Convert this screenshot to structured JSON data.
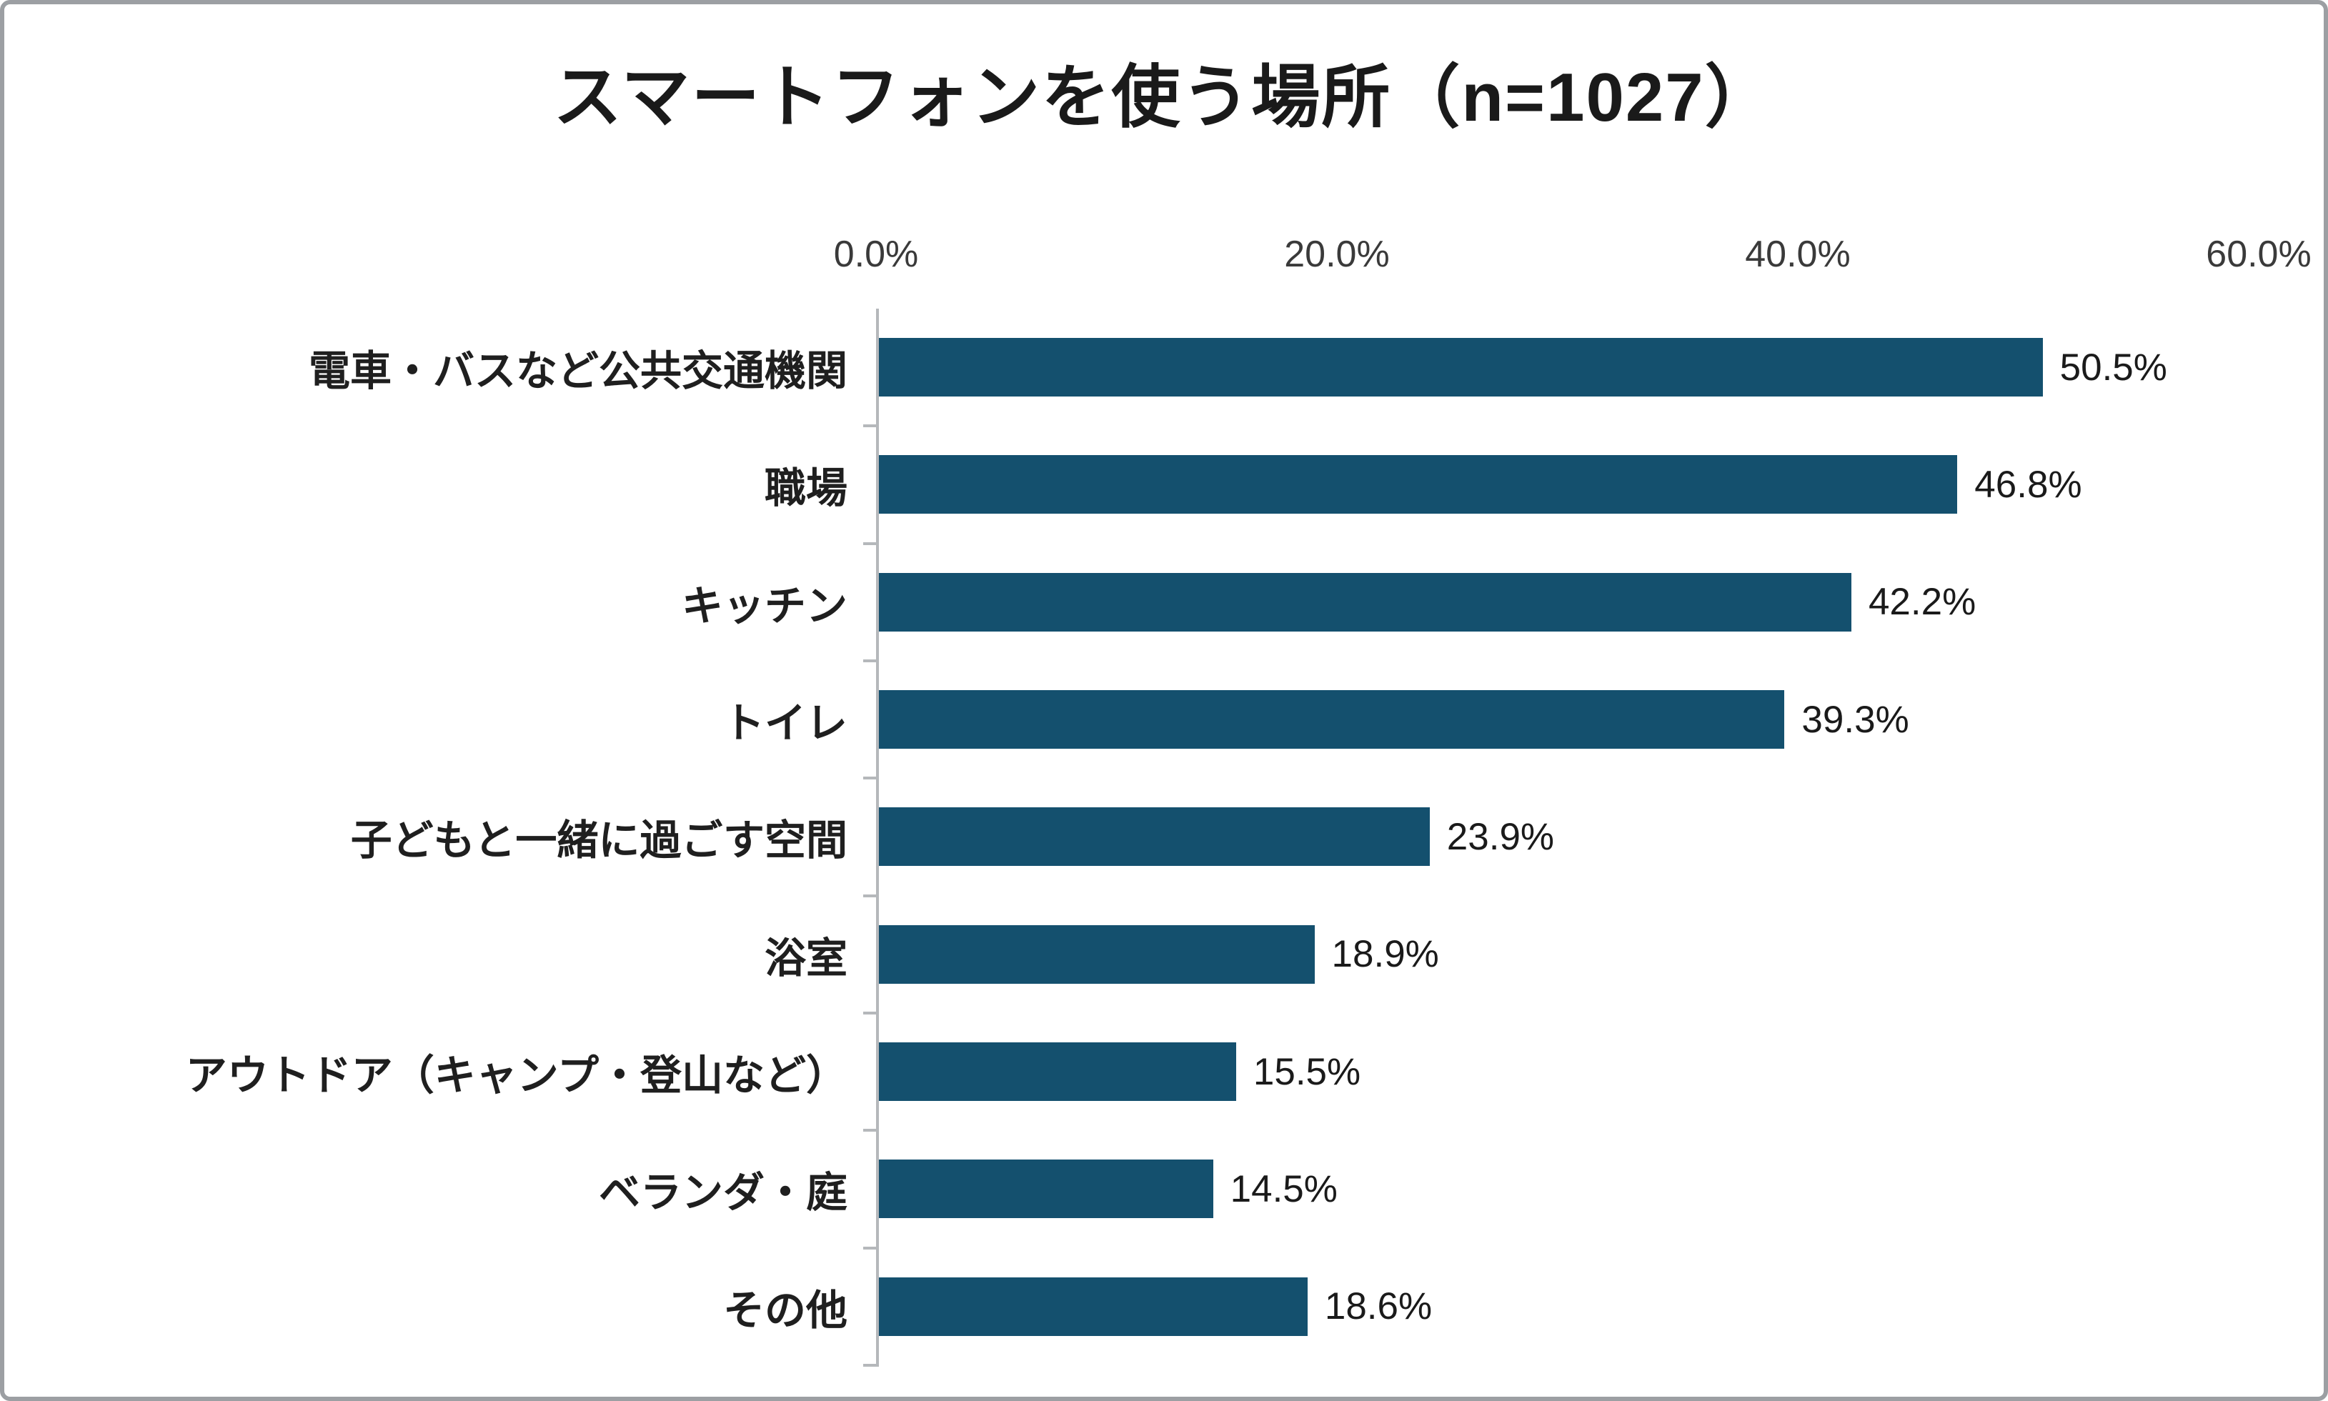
{
  "title": "スマートフォンを使う場所（n=1027）",
  "chart_data": {
    "type": "bar",
    "orientation": "horizontal",
    "title": "スマートフォンを使う場所（n=1027）",
    "categories": [
      "電車・バスなど公共交通機関",
      "職場",
      "キッチン",
      "トイレ",
      "子どもと一緒に過ごす空間",
      "浴室",
      "アウトドア（キャンプ・登山など）",
      "ベランダ・庭",
      "その他"
    ],
    "values": [
      50.5,
      46.8,
      42.2,
      39.3,
      23.9,
      18.9,
      15.5,
      14.5,
      18.6
    ],
    "value_labels": [
      "50.5%",
      "46.8%",
      "42.2%",
      "39.3%",
      "23.9%",
      "18.9%",
      "15.5%",
      "14.5%",
      "18.6%"
    ],
    "x_axis": {
      "ticks": [
        "0.0%",
        "20.0%",
        "40.0%",
        "60.0%"
      ],
      "position": "top"
    },
    "xlim": [
      0,
      60
    ],
    "xlabel": "",
    "ylabel": "",
    "grid": "off",
    "legend": "none",
    "bar_color": "#14506E",
    "axis_color": "#b5b8bb",
    "text_color": "#1a1a1a"
  }
}
